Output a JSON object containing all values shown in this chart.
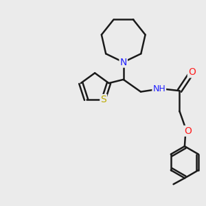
{
  "background_color": "#ebebeb",
  "bond_color": "#1a1a1a",
  "N_color": "#2020ff",
  "O_color": "#ff2020",
  "S_color": "#bbaa00",
  "bond_width": 1.8,
  "figsize": [
    3.0,
    3.0
  ],
  "dpi": 100,
  "xlim": [
    0,
    10
  ],
  "ylim": [
    0,
    10
  ]
}
